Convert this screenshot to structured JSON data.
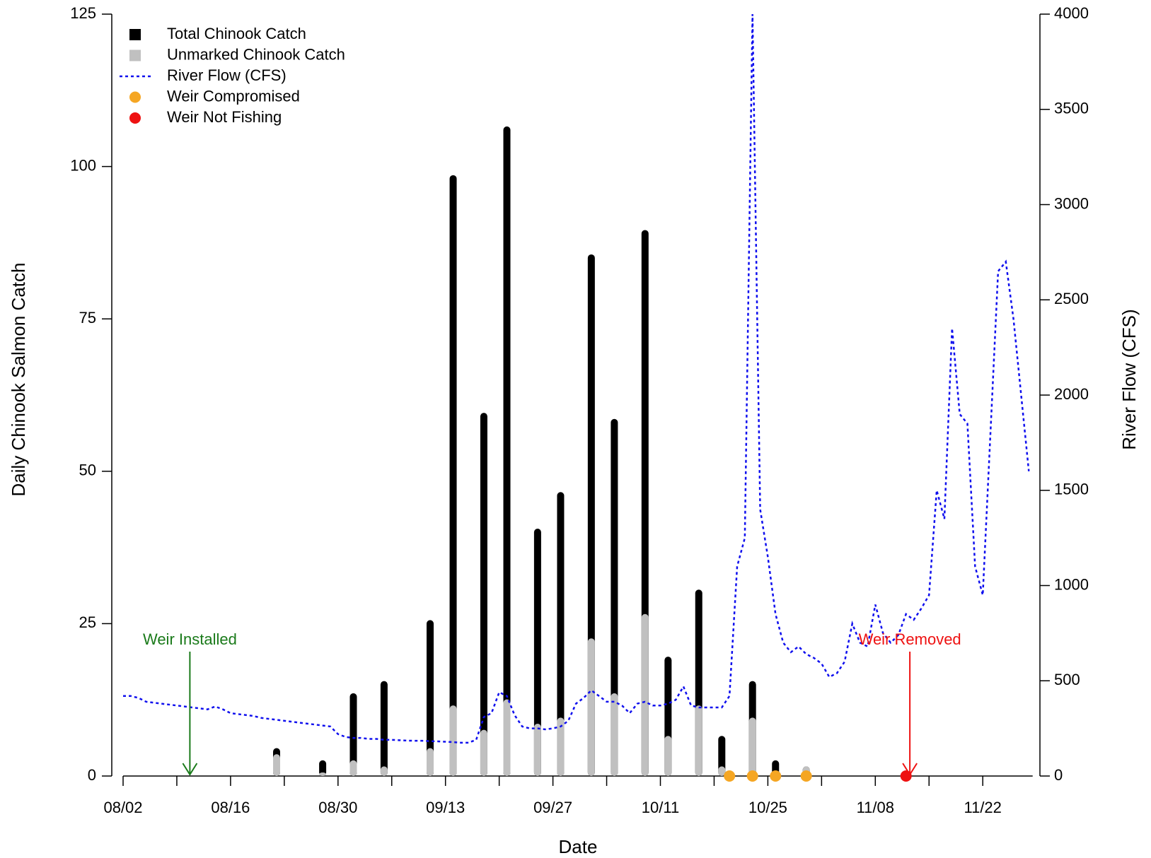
{
  "chart_data": {
    "type": "bar",
    "x_label": "Date",
    "y_label": "Daily Chinook Salmon Catch",
    "y2_label": "River Flow (CFS)",
    "ylim": [
      0,
      125
    ],
    "yticks": [
      0,
      25,
      50,
      75,
      100,
      125
    ],
    "y2lim": [
      0,
      4000
    ],
    "y2ticks": [
      0,
      500,
      1000,
      1500,
      2000,
      2500,
      3000,
      3500,
      4000
    ],
    "legend": "top-left",
    "annotations": [
      {
        "text": "Weir Installed",
        "color": "#1a7a1a"
      },
      {
        "text": "Weir Removed",
        "color": "#ee1111"
      }
    ],
    "categories": [
      "08/02",
      null,
      null,
      null,
      null,
      null,
      null,
      null,
      null,
      null,
      null,
      null,
      null,
      null,
      "08/16",
      null,
      null,
      null,
      null,
      null,
      null,
      null,
      null,
      null,
      null,
      null,
      null,
      null,
      "08/30",
      null,
      null,
      null,
      null,
      null,
      null,
      null,
      null,
      null,
      null,
      null,
      null,
      null,
      "09/13",
      null,
      null,
      null,
      null,
      null,
      null,
      null,
      null,
      null,
      null,
      null,
      null,
      null,
      "09/27",
      null,
      null,
      null,
      null,
      null,
      null,
      null,
      null,
      null,
      null,
      null,
      null,
      null,
      "10/11",
      null,
      null,
      null,
      null,
      null,
      null,
      null,
      null,
      null,
      null,
      null,
      null,
      null,
      "10/25",
      null,
      null,
      null,
      null,
      null,
      null,
      null,
      null,
      null,
      null,
      null,
      null,
      null,
      "11/08",
      null,
      null,
      null,
      null,
      null,
      null,
      null,
      null,
      null,
      null,
      null,
      null,
      null,
      "11/22",
      null,
      null,
      null,
      null,
      null,
      null
    ],
    "series": [
      {
        "name": "Total Chinook Catch",
        "type": "bar",
        "color": "#000000",
        "values": [
          null,
          null,
          null,
          null,
          null,
          null,
          null,
          null,
          null,
          null,
          null,
          null,
          null,
          null,
          null,
          null,
          null,
          null,
          null,
          null,
          4,
          null,
          null,
          null,
          null,
          null,
          2,
          null,
          null,
          null,
          13,
          null,
          null,
          null,
          15,
          null,
          null,
          null,
          null,
          null,
          25,
          null,
          null,
          98,
          null,
          null,
          null,
          59,
          null,
          null,
          106,
          null,
          null,
          null,
          40,
          null,
          null,
          46,
          null,
          null,
          null,
          85,
          null,
          null,
          58,
          null,
          null,
          null,
          89,
          null,
          null,
          19,
          null,
          null,
          null,
          30,
          null,
          null,
          6,
          null,
          null,
          null,
          15,
          null,
          null,
          2,
          null,
          null,
          null,
          1,
          null,
          null,
          null,
          null,
          null,
          null,
          null,
          null,
          null,
          null,
          null,
          null,
          null,
          null,
          null,
          null,
          null,
          null,
          null,
          null,
          null,
          null,
          null,
          null,
          null,
          null,
          null,
          null,
          null
        ]
      },
      {
        "name": "Unmarked Chinook Catch",
        "type": "bar",
        "color": "#c0c0c0",
        "values": [
          null,
          null,
          null,
          null,
          null,
          null,
          null,
          null,
          null,
          null,
          null,
          null,
          null,
          null,
          null,
          null,
          null,
          null,
          null,
          null,
          3,
          null,
          null,
          null,
          null,
          null,
          0,
          null,
          null,
          null,
          2,
          null,
          null,
          null,
          1,
          null,
          null,
          null,
          null,
          null,
          4,
          null,
          null,
          11,
          null,
          null,
          null,
          7,
          null,
          null,
          12,
          null,
          null,
          null,
          8,
          null,
          null,
          9,
          null,
          null,
          null,
          22,
          null,
          null,
          13,
          null,
          null,
          null,
          26,
          null,
          null,
          6,
          null,
          null,
          null,
          11,
          null,
          null,
          1,
          null,
          null,
          null,
          9,
          null,
          null,
          0,
          null,
          null,
          null,
          1,
          null,
          null,
          null,
          null,
          null,
          null,
          null,
          null,
          null,
          null,
          null,
          null,
          null,
          null,
          null,
          null,
          null,
          null,
          null,
          null,
          null,
          null,
          null,
          null,
          null,
          null,
          null,
          null,
          null
        ]
      },
      {
        "name": "River Flow (CFS)",
        "type": "line",
        "axis": "y2",
        "color": "#1010ee",
        "values": [
          420,
          420,
          410,
          390,
          385,
          380,
          375,
          370,
          365,
          360,
          355,
          350,
          365,
          350,
          330,
          325,
          320,
          315,
          305,
          300,
          295,
          290,
          285,
          280,
          275,
          270,
          265,
          260,
          220,
          205,
          200,
          200,
          195,
          195,
          190,
          190,
          188,
          186,
          185,
          185,
          183,
          182,
          180,
          178,
          175,
          175,
          190,
          310,
          330,
          440,
          420,
          320,
          260,
          250,
          250,
          245,
          250,
          260,
          290,
          380,
          410,
          450,
          420,
          390,
          390,
          370,
          330,
          380,
          390,
          370,
          370,
          380,
          400,
          470,
          370,
          360,
          360,
          360,
          360,
          420,
          1100,
          1250,
          4000,
          1400,
          1150,
          850,
          700,
          650,
          680,
          640,
          620,
          590,
          520,
          540,
          600,
          800,
          700,
          680,
          900,
          750,
          700,
          740,
          850,
          820,
          880,
          950,
          1500,
          1350,
          2350,
          1900,
          1850,
          1100,
          950,
          1800,
          2650,
          2700,
          2400,
          2000,
          1600
        ]
      },
      {
        "name": "Weir Compromised",
        "type": "point",
        "color": "#f5a623",
        "values": [
          null,
          null,
          null,
          null,
          null,
          null,
          null,
          null,
          null,
          null,
          null,
          null,
          null,
          null,
          null,
          null,
          null,
          null,
          null,
          null,
          null,
          null,
          null,
          null,
          null,
          null,
          null,
          null,
          null,
          null,
          null,
          null,
          null,
          null,
          null,
          null,
          null,
          null,
          null,
          null,
          null,
          null,
          null,
          null,
          null,
          null,
          null,
          null,
          null,
          null,
          null,
          null,
          null,
          null,
          null,
          null,
          null,
          null,
          null,
          null,
          null,
          null,
          null,
          null,
          null,
          null,
          null,
          null,
          null,
          null,
          null,
          null,
          null,
          null,
          null,
          null,
          null,
          null,
          null,
          0,
          null,
          null,
          0,
          null,
          null,
          0,
          null,
          null,
          null,
          0,
          null,
          null,
          null,
          null,
          null,
          null,
          null,
          null,
          null,
          null,
          null,
          null,
          null,
          null,
          null,
          null,
          null,
          null,
          null,
          null,
          null,
          null,
          null,
          null,
          null,
          null,
          null,
          null,
          null
        ]
      },
      {
        "name": "Weir Not Fishing",
        "type": "point",
        "color": "#ee1111",
        "values": [
          null,
          null,
          null,
          null,
          null,
          null,
          null,
          null,
          null,
          null,
          null,
          null,
          null,
          null,
          null,
          null,
          null,
          null,
          null,
          null,
          null,
          null,
          null,
          null,
          null,
          null,
          null,
          null,
          null,
          null,
          null,
          null,
          null,
          null,
          null,
          null,
          null,
          null,
          null,
          null,
          null,
          null,
          null,
          null,
          null,
          null,
          null,
          null,
          null,
          null,
          null,
          null,
          null,
          null,
          null,
          null,
          null,
          null,
          null,
          null,
          null,
          null,
          null,
          null,
          null,
          null,
          null,
          null,
          null,
          null,
          null,
          null,
          null,
          null,
          null,
          null,
          null,
          null,
          null,
          null,
          null,
          null,
          null,
          null,
          null,
          null,
          null,
          null,
          null,
          null,
          null,
          null,
          null,
          null,
          null,
          null,
          null,
          null,
          null,
          null,
          null,
          null,
          0,
          null,
          null,
          null,
          null,
          null,
          null,
          null,
          null,
          null,
          null,
          null,
          null,
          null,
          null,
          null,
          null
        ]
      }
    ]
  }
}
